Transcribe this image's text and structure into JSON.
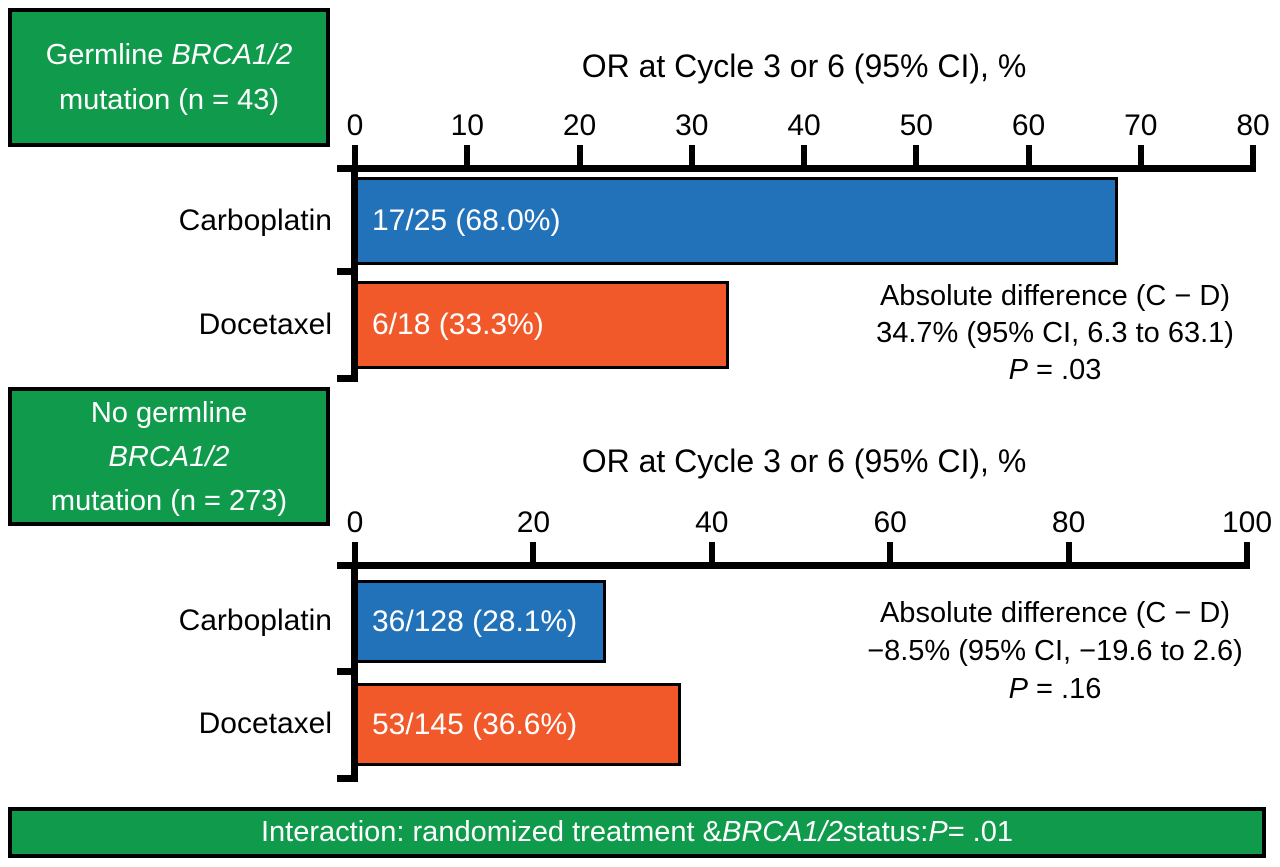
{
  "figure": {
    "background": "#ffffff",
    "colors": {
      "green": "#0F9B4B",
      "blue": "#2272B9",
      "orange": "#F1592A",
      "border": "#000000",
      "bar_text": "#ffffff",
      "text": "#000000"
    }
  },
  "group_boxes": [
    {
      "id": "germline",
      "lines": [
        [
          {
            "t": "Germline ",
            "i": false
          },
          {
            "t": "BRCA1/2",
            "i": true
          }
        ],
        [
          {
            "t": "mutation (n = 43)",
            "i": false
          }
        ]
      ]
    },
    {
      "id": "no-germline",
      "lines": [
        [
          {
            "t": "No germline",
            "i": false
          }
        ],
        [
          {
            "t": "BRCA1/2",
            "i": true
          }
        ],
        [
          {
            "t": "mutation (n = 273)",
            "i": false
          }
        ]
      ]
    }
  ],
  "interaction_note": {
    "segments": [
      {
        "t": "Interaction: randomized treatment & ",
        "i": false
      },
      {
        "t": "BRCA1/2",
        "i": true
      },
      {
        "t": " status: ",
        "i": false
      },
      {
        "t": "P",
        "i": true
      },
      {
        "t": " = .01",
        "i": false
      }
    ]
  },
  "chart_data": [
    {
      "type": "bar",
      "orientation": "horizontal",
      "group": "Germline BRCA1/2 mutation (n = 43)",
      "title": "OR at Cycle 3 or 6 (95% CI), %",
      "categories": [
        "Carboplatin",
        "Docetaxel"
      ],
      "values": [
        68.0,
        33.3
      ],
      "bar_labels": [
        "17/25 (68.0%)",
        "6/18 (33.3%)"
      ],
      "bar_colors": [
        "#2272B9",
        "#F1592A"
      ],
      "x_ticks": [
        0,
        10,
        20,
        30,
        40,
        50,
        60,
        70,
        80
      ],
      "xlim": [
        0,
        80
      ],
      "grid": false,
      "legend": "none",
      "annotation_lines": [
        [
          {
            "t": "Absolute difference (C − D)",
            "i": false
          }
        ],
        [
          {
            "t": "34.7% (95% CI, 6.3 to 63.1)",
            "i": false
          }
        ],
        [
          {
            "t": "P",
            "i": true
          },
          {
            "t": " = .03",
            "i": false
          }
        ]
      ]
    },
    {
      "type": "bar",
      "orientation": "horizontal",
      "group": "No germline BRCA1/2 mutation (n = 273)",
      "title": "OR at Cycle 3 or 6 (95% CI), %",
      "categories": [
        "Carboplatin",
        "Docetaxel"
      ],
      "values": [
        28.1,
        36.6
      ],
      "bar_labels": [
        "36/128 (28.1%)",
        "53/145 (36.6%)"
      ],
      "bar_colors": [
        "#2272B9",
        "#F1592A"
      ],
      "x_ticks": [
        0,
        20,
        40,
        60,
        80,
        100
      ],
      "xlim": [
        0,
        100
      ],
      "grid": false,
      "legend": "none",
      "annotation_lines": [
        [
          {
            "t": "Absolute difference (C − D)",
            "i": false
          }
        ],
        [
          {
            "t": "−8.5% (95% CI, −19.6 to 2.6)",
            "i": false
          }
        ],
        [
          {
            "t": "P",
            "i": true
          },
          {
            "t": " = .16",
            "i": false
          }
        ]
      ]
    }
  ]
}
